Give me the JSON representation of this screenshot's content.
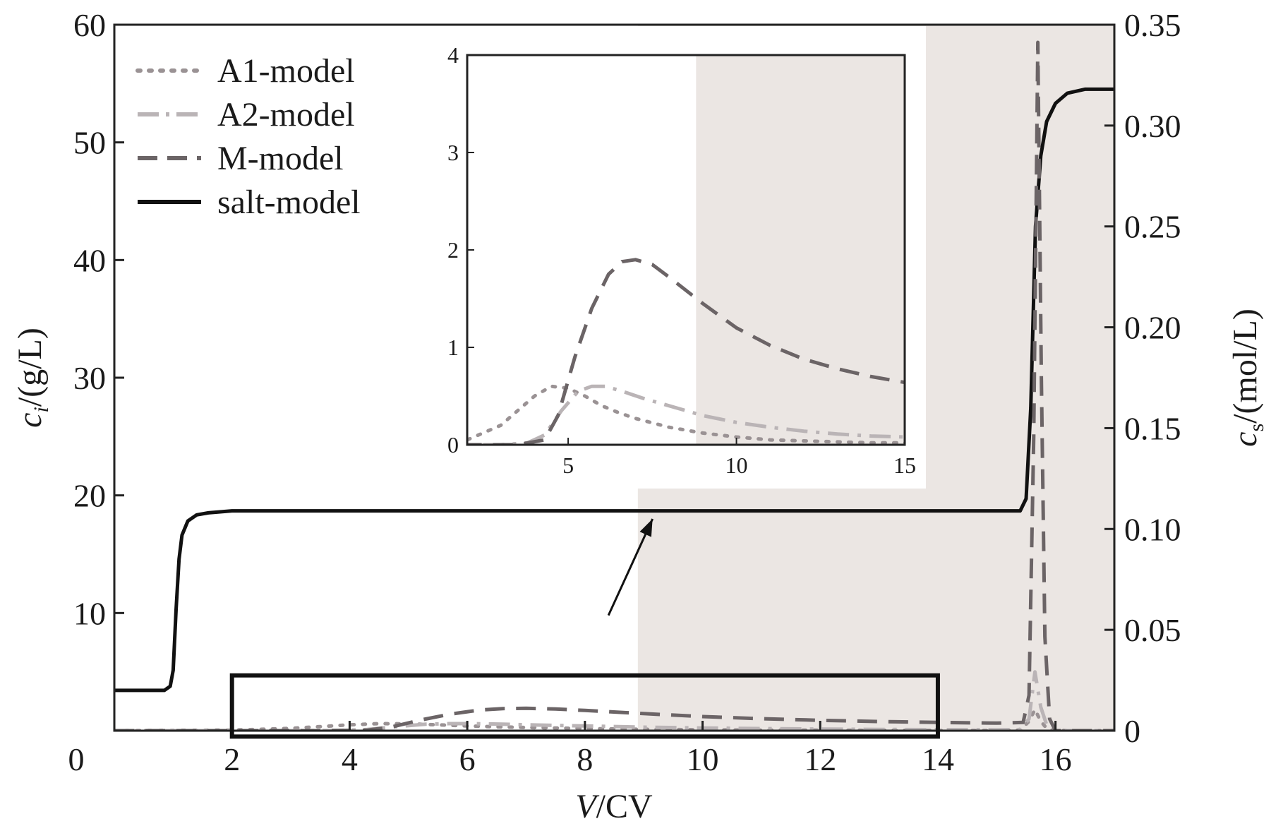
{
  "chart_data": {
    "type": "line",
    "xlabel": {
      "var": "V",
      "unit": "/CV"
    },
    "ylabel_left": {
      "var": "c",
      "sub": "i",
      "unit": "/(g/L)"
    },
    "ylabel_right": {
      "var": "c",
      "sub": "s",
      "unit": "/(mol/L)"
    },
    "xlim": [
      0,
      17
    ],
    "ylim_left": [
      0,
      60
    ],
    "ylim_right": [
      0,
      0.35
    ],
    "x_ticks": [
      2,
      4,
      6,
      8,
      10,
      12,
      14,
      16
    ],
    "x_origin_label": "0",
    "y_left_ticks": [
      10,
      20,
      30,
      40,
      50,
      60
    ],
    "y_left_tick_labels": [
      "10",
      "20",
      "30",
      "40",
      "50",
      "60"
    ],
    "y_right_ticks": [
      0,
      0.05,
      0.1,
      0.15,
      0.2,
      0.25,
      0.3,
      0.35
    ],
    "y_right_tick_labels": [
      "0",
      "0.05",
      "0.10",
      "0.15",
      "0.20",
      "0.25",
      "0.30",
      "0.35"
    ],
    "shaded_region_x": [
      8.9,
      17
    ],
    "zoom_box": {
      "x": [
        2,
        14
      ],
      "y": [
        -0.5,
        4.7
      ]
    },
    "legend": {
      "placement": "top-left",
      "entries": [
        {
          "label": "A1-model",
          "series": "A1"
        },
        {
          "label": "A2-model",
          "series": "A2"
        },
        {
          "label": "M-model",
          "series": "M"
        },
        {
          "label": "salt-model",
          "series": "salt"
        }
      ]
    },
    "series": [
      {
        "key": "A1",
        "axis": "left",
        "color": "#9a9294",
        "style": "dotted",
        "x": [
          0,
          2,
          3,
          3.5,
          4,
          4.5,
          5,
          5.5,
          6,
          6.5,
          7,
          8,
          9,
          10,
          11,
          12,
          13,
          14,
          15,
          15.4,
          15.55,
          15.65,
          15.75,
          15.85,
          15.95,
          16.2,
          17
        ],
        "y": [
          0,
          0.05,
          0.2,
          0.35,
          0.5,
          0.6,
          0.58,
          0.5,
          0.4,
          0.33,
          0.27,
          0.18,
          0.12,
          0.08,
          0.05,
          0.04,
          0.03,
          0.02,
          0.02,
          0.05,
          0.8,
          1.8,
          0.8,
          0.2,
          0.05,
          0,
          0
        ]
      },
      {
        "key": "A2",
        "axis": "left",
        "color": "#bab4b6",
        "style": "dashdot",
        "x": [
          0,
          3,
          3.8,
          4.3,
          4.8,
          5.3,
          5.7,
          6.1,
          6.6,
          7.2,
          8,
          9,
          10,
          11,
          12,
          13,
          14,
          15,
          15.4,
          15.55,
          15.65,
          15.75,
          15.85,
          16,
          16.2,
          17
        ],
        "y": [
          0,
          0,
          0.02,
          0.1,
          0.35,
          0.55,
          0.6,
          0.6,
          0.55,
          0.48,
          0.4,
          0.3,
          0.23,
          0.18,
          0.14,
          0.11,
          0.09,
          0.08,
          0.1,
          1.0,
          5.0,
          2.0,
          0.5,
          0.1,
          0,
          0
        ]
      },
      {
        "key": "M",
        "axis": "left",
        "color": "#6b6466",
        "style": "dashed",
        "x": [
          0,
          3.5,
          4.3,
          4.7,
          5.2,
          5.7,
          6.2,
          6.6,
          7.0,
          7.5,
          8,
          9,
          10,
          11,
          12,
          13,
          14,
          15,
          15.45,
          15.55,
          15.63,
          15.7,
          15.76,
          15.82,
          15.9,
          16.0,
          17
        ],
        "y": [
          0,
          0,
          0.05,
          0.3,
          0.9,
          1.4,
          1.75,
          1.88,
          1.9,
          1.85,
          1.72,
          1.45,
          1.2,
          1.02,
          0.88,
          0.78,
          0.7,
          0.64,
          0.7,
          3.0,
          25.0,
          58.5,
          30.0,
          8.0,
          1.0,
          0,
          0
        ]
      },
      {
        "key": "salt",
        "axis": "right",
        "color": "#111111",
        "style": "solid",
        "x": [
          0,
          0.85,
          0.95,
          1.0,
          1.05,
          1.1,
          1.15,
          1.25,
          1.4,
          1.6,
          2,
          4,
          8,
          12,
          15,
          15.4,
          15.5,
          15.58,
          15.66,
          15.75,
          15.85,
          16,
          16.2,
          16.5,
          17
        ],
        "y": [
          0.02,
          0.02,
          0.022,
          0.03,
          0.06,
          0.085,
          0.097,
          0.104,
          0.107,
          0.108,
          0.109,
          0.109,
          0.109,
          0.109,
          0.109,
          0.109,
          0.115,
          0.16,
          0.25,
          0.285,
          0.302,
          0.311,
          0.316,
          0.318,
          0.318
        ]
      }
    ],
    "inset": {
      "xlim": [
        2,
        15
      ],
      "ylim": [
        0,
        4
      ],
      "x_ticks": [
        5,
        10,
        15
      ],
      "y_ticks": [
        0,
        1,
        2,
        3,
        4
      ],
      "shaded_region_x": [
        8.8,
        15
      ]
    }
  }
}
